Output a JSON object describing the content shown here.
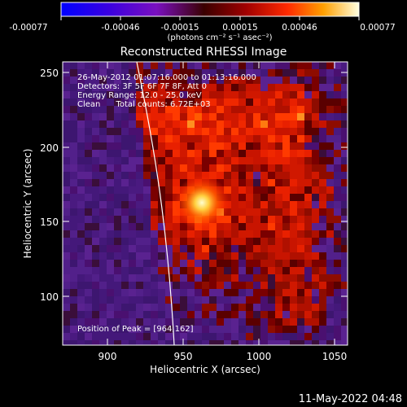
{
  "colorbar": {
    "tick_labels": [
      "-0.00077",
      "-0.00046",
      "-0.00015",
      "0.00015",
      "0.00046",
      "0.00077"
    ],
    "unit_label": "(photons cm⁻² s⁻¹ asec⁻²)",
    "range": [
      -0.00077,
      0.00077
    ]
  },
  "plot": {
    "title": "Reconstructed RHESSI Image",
    "xlabel": "Heliocentric X (arcsec)",
    "ylabel": "Heliocentric Y (arcsec)",
    "x_ticks": [
      "900",
      "950",
      "1000",
      "1050"
    ],
    "y_ticks": [
      "250",
      "200",
      "150",
      "100"
    ],
    "xlim": [
      865,
      1060
    ],
    "ylim": [
      65,
      262
    ]
  },
  "annotations": {
    "line1": "26-May-2012 01:07:16.000 to 01:13:16.000",
    "line2": "Detectors: 3F 5F 6F 7F 8F, Att 0",
    "line3": "Energy Range: 12.0 - 25.0 keV",
    "line4": "Clean      Total counts: 6.72E+03",
    "peak": "Position of Peak = [964,162]"
  },
  "footer": {
    "timestamp": "11-May-2022 04:48"
  },
  "peak": {
    "x": 964,
    "y": 162
  }
}
